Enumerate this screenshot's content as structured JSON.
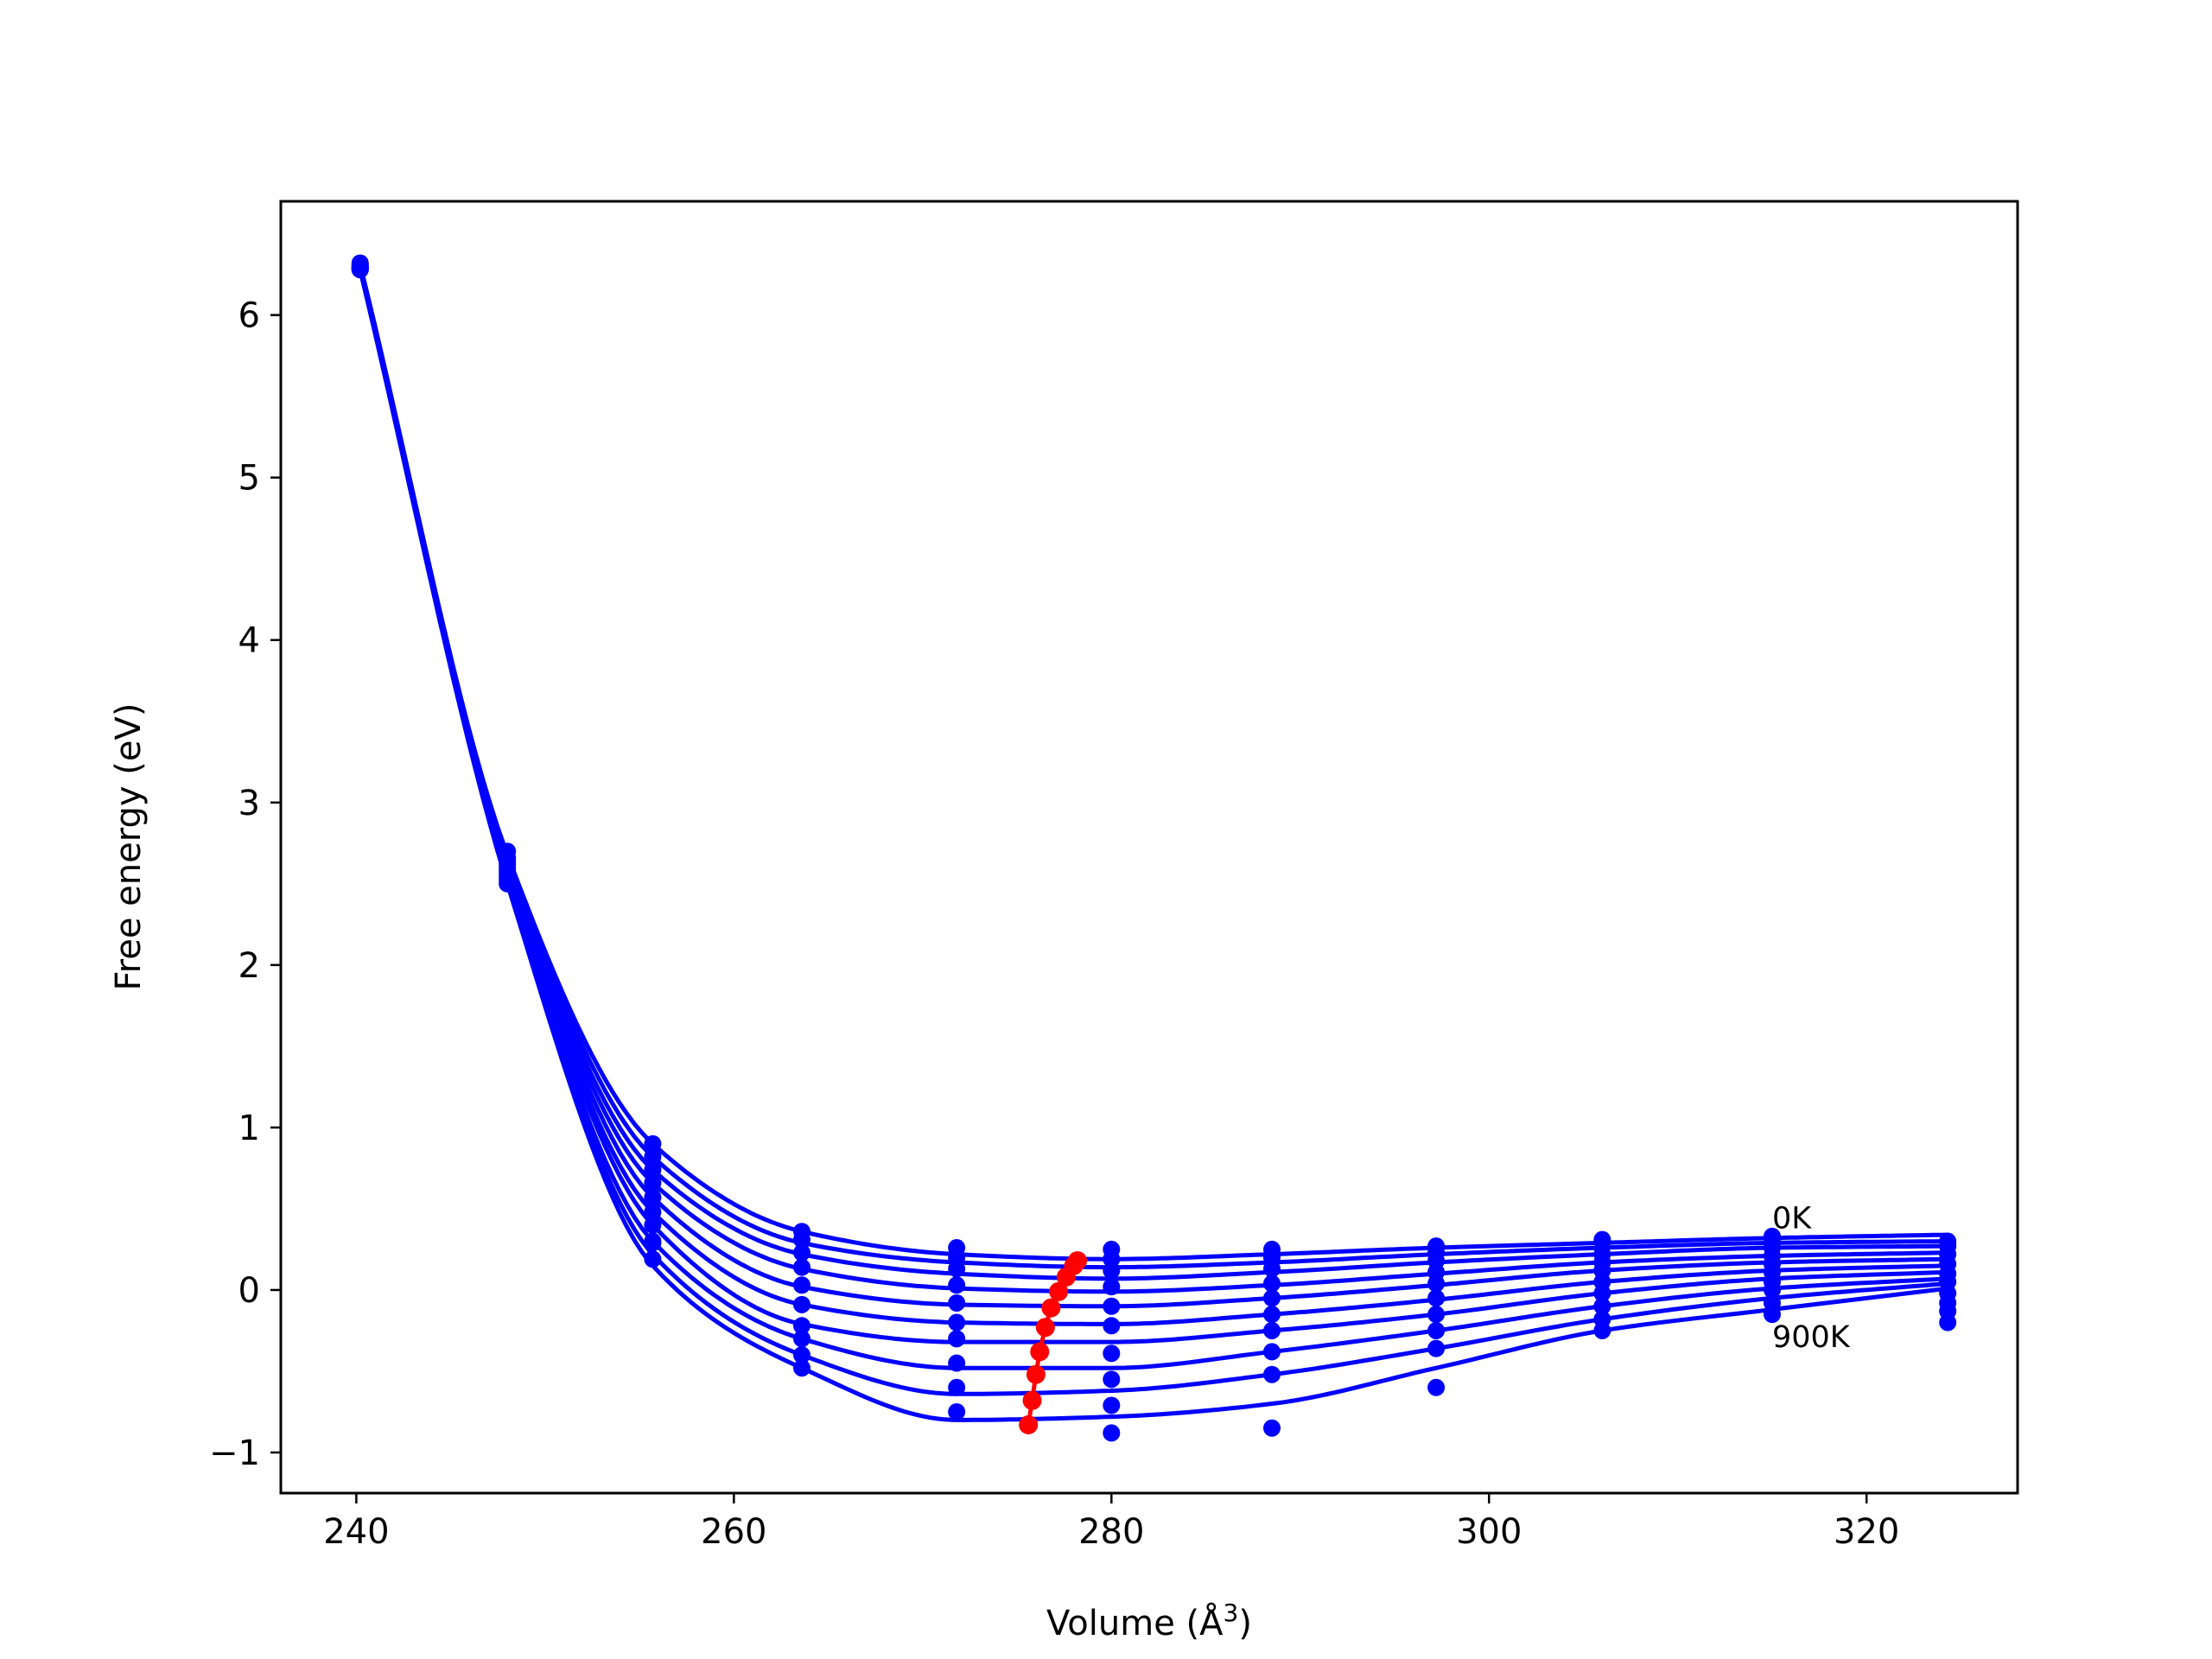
{
  "chart_data": {
    "type": "line",
    "title": "",
    "xlabel": "Volume (Å",
    "xlabel_sup": "3",
    "xlabel_close": ")",
    "ylabel": "Free energy (eV)",
    "xlim": [
      236,
      328
    ],
    "ylim": [
      -1.25,
      6.7
    ],
    "xticks": [
      240,
      260,
      280,
      300,
      320
    ],
    "yticks": [
      -1,
      0,
      1,
      2,
      3,
      4,
      5,
      6
    ],
    "ytick_labels": [
      "−1",
      "0",
      "1",
      "2",
      "3",
      "4",
      "5",
      "6"
    ],
    "grid": false,
    "colors": {
      "curves": "#0000ff",
      "points": "#0000ff",
      "minimum": "#ff0000"
    },
    "annotations": [
      {
        "text": "0K",
        "x": 315,
        "y": 0.38
      },
      {
        "text": "900K",
        "x": 315,
        "y": -0.35
      }
    ],
    "volumes": [
      240.2,
      248.0,
      255.7,
      263.6,
      271.8,
      280.0,
      288.5,
      297.2,
      306.0,
      315.0,
      324.3
    ],
    "series": [
      {
        "curve": [
          6.31,
          2.68,
          0.9,
          0.36,
          0.22,
          0.19,
          0.22,
          0.26,
          0.29,
          0.32,
          0.34
        ],
        "points": [
          6.32,
          2.7,
          0.9,
          0.36,
          0.26,
          0.25,
          0.25,
          0.27,
          0.31,
          0.33,
          0.3
        ],
        "minimum": {
          "volume": 278.2,
          "energy": 0.18
        }
      },
      {
        "curve": [
          6.31,
          2.66,
          0.82,
          0.29,
          0.17,
          0.14,
          0.17,
          0.22,
          0.26,
          0.29,
          0.3
        ],
        "points": [
          6.31,
          2.66,
          0.82,
          0.31,
          0.2,
          0.19,
          0.2,
          0.23,
          0.3,
          0.3,
          0.27
        ],
        "minimum": {
          "volume": 278.0,
          "energy": 0.15
        }
      },
      {
        "curve": [
          6.3,
          2.64,
          0.74,
          0.22,
          0.1,
          0.07,
          0.11,
          0.17,
          0.22,
          0.26,
          0.27
        ],
        "points": [
          6.3,
          2.64,
          0.74,
          0.23,
          0.13,
          0.12,
          0.13,
          0.18,
          0.22,
          0.26,
          0.22
        ],
        "minimum": {
          "volume": 277.6,
          "energy": 0.08
        }
      },
      {
        "curve": [
          6.3,
          2.62,
          0.66,
          0.13,
          0.01,
          -0.01,
          0.03,
          0.1,
          0.17,
          0.21,
          0.23
        ],
        "points": [
          6.3,
          2.62,
          0.66,
          0.14,
          0.03,
          0.02,
          0.04,
          0.11,
          0.17,
          0.21,
          0.16
        ],
        "minimum": {
          "volume": 277.2,
          "energy": -0.01
        }
      },
      {
        "curve": [
          6.29,
          2.6,
          0.57,
          0.02,
          -0.09,
          -0.1,
          -0.05,
          0.03,
          0.12,
          0.17,
          0.19
        ],
        "points": [
          6.29,
          2.6,
          0.57,
          0.03,
          -0.08,
          -0.1,
          -0.05,
          0.04,
          0.12,
          0.16,
          0.1
        ],
        "minimum": {
          "volume": 276.8,
          "energy": -0.11
        }
      },
      {
        "curve": [
          6.29,
          2.58,
          0.48,
          -0.09,
          -0.2,
          -0.21,
          -0.15,
          -0.06,
          0.05,
          0.12,
          0.15
        ],
        "points": [
          6.29,
          2.58,
          0.48,
          -0.09,
          -0.2,
          -0.22,
          -0.15,
          -0.05,
          0.05,
          0.11,
          0.05
        ],
        "minimum": {
          "volume": 276.5,
          "energy": -0.23
        }
      },
      {
        "curve": [
          6.29,
          2.56,
          0.4,
          -0.21,
          -0.32,
          -0.32,
          -0.25,
          -0.15,
          -0.02,
          0.07,
          0.11
        ],
        "points": [
          6.29,
          2.56,
          0.4,
          -0.22,
          -0.3,
          -0.39,
          -0.25,
          -0.15,
          -0.02,
          0.05,
          -0.02
        ],
        "minimum": {
          "volume": 276.2,
          "energy": -0.38
        }
      },
      {
        "curve": [
          6.28,
          2.54,
          0.3,
          -0.3,
          -0.48,
          -0.48,
          -0.38,
          -0.25,
          -0.1,
          0.01,
          0.07
        ],
        "points": [
          6.28,
          2.54,
          0.3,
          -0.3,
          -0.45,
          -0.55,
          -0.38,
          -0.25,
          -0.1,
          0.0,
          -0.08
        ],
        "minimum": {
          "volume": 276.0,
          "energy": -0.52
        }
      },
      {
        "curve": [
          6.28,
          2.52,
          0.22,
          -0.4,
          -0.64,
          -0.62,
          -0.52,
          -0.36,
          -0.18,
          -0.05,
          0.04
        ],
        "points": [
          6.28,
          2.52,
          0.29,
          -0.4,
          -0.6,
          -0.71,
          -0.52,
          -0.36,
          -0.18,
          -0.08,
          -0.13
        ],
        "minimum": {
          "volume": 275.8,
          "energy": -0.68
        }
      },
      {
        "curve": [
          6.28,
          2.5,
          0.15,
          -0.48,
          -0.8,
          -0.78,
          -0.7,
          -0.48,
          -0.25,
          -0.12,
          0.01
        ],
        "points": [
          6.28,
          2.5,
          0.19,
          -0.48,
          -0.75,
          -0.88,
          -0.85,
          -0.6,
          -0.25,
          -0.15,
          -0.2
        ],
        "minimum": {
          "volume": 275.6,
          "energy": -0.83
        }
      }
    ]
  }
}
